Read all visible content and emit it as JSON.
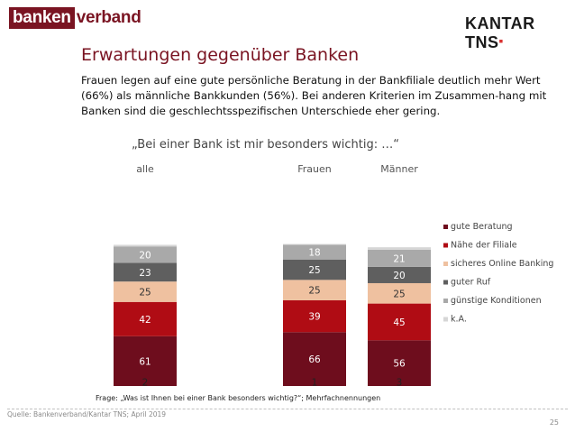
{
  "header": {
    "logo_left_box": "banken",
    "logo_left_tail": "verband",
    "logo_right": "KANTAR TNS",
    "logo_right_mark": "▪"
  },
  "title": "Erwartungen gegenüber Banken",
  "intro": "Frauen legen auf eine gute persönliche Beratung in der Bankfiliale deutlich mehr Wert (66%) als männliche Bankkunden (56%). Bei anderen Kriterien im Zusammen-hang mit Banken sind die geschlechtsspezifischen Unterschiede eher gering.",
  "quote": "„Bei einer Bank ist mir besonders wichtig: …“",
  "chart_data": {
    "type": "bar",
    "stacked": true,
    "categories": [
      "alle",
      "Frauen",
      "Männer"
    ],
    "series": [
      {
        "name": "gute Beratung",
        "values": [
          61,
          66,
          56
        ],
        "color": "#6e0d1d",
        "label_color": "#ffffff"
      },
      {
        "name": "Nähe der Filiale",
        "values": [
          42,
          39,
          45
        ],
        "color": "#b00c14",
        "label_color": "#ffffff"
      },
      {
        "name": "sicheres Online Banking",
        "values": [
          25,
          25,
          25
        ],
        "color": "#efc1a0",
        "label_color": "#333333"
      },
      {
        "name": "guter Ruf",
        "values": [
          23,
          25,
          20
        ],
        "color": "#5f5f5f",
        "label_color": "#ffffff"
      },
      {
        "name": "günstige Konditionen",
        "values": [
          20,
          18,
          21
        ],
        "color": "#a9a9a9",
        "label_color": "#ffffff"
      },
      {
        "name": "k.A.",
        "values": [
          2,
          1,
          3
        ],
        "color": "#d6d6d6",
        "label_color": "#222222"
      }
    ],
    "legend_position": "right",
    "grid": false
  },
  "footer": {
    "question": "Frage: „Was ist Ihnen bei einer Bank besonders wichtig?“; Mehrfachnennungen",
    "source": "Quelle: Bankenverband/Kantar TNS; April 2019",
    "page": "25"
  }
}
